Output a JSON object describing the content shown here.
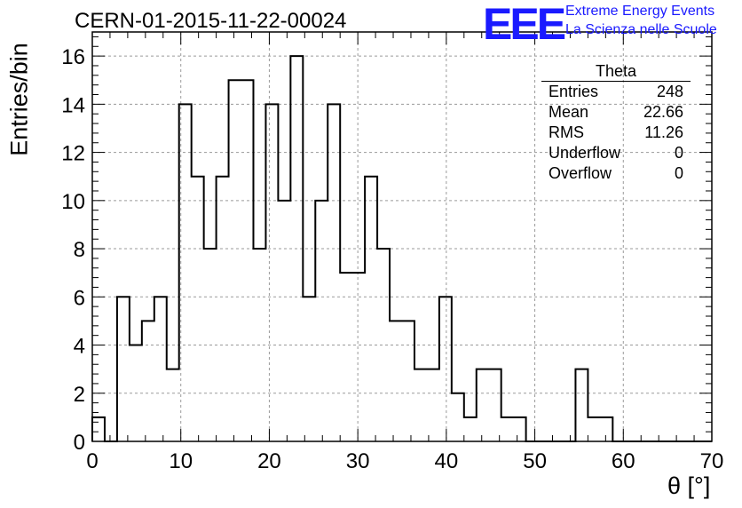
{
  "header": {
    "title": "CERN-01-2015-11-22-00024",
    "logo_text": "EEE",
    "logo_line1": "Extreme Energy Events",
    "logo_line2": "La Scienza nelle Scuole",
    "logo_color": "#1a1aff"
  },
  "stats_box": {
    "name": "Theta",
    "rows": [
      {
        "label": "Entries",
        "value": "248"
      },
      {
        "label": "Mean",
        "value": "22.66"
      },
      {
        "label": "RMS",
        "value": "11.26"
      },
      {
        "label": "Underflow",
        "value": "0"
      },
      {
        "label": "Overflow",
        "value": "0"
      }
    ]
  },
  "chart_data": {
    "type": "bar",
    "style": "step histogram",
    "xlabel": "θ [°]",
    "ylabel": "Entries/bin",
    "xlim": [
      0,
      70
    ],
    "ylim": [
      0,
      17
    ],
    "xticks": [
      0,
      10,
      20,
      30,
      40,
      50,
      60,
      70
    ],
    "yticks": [
      0,
      2,
      4,
      6,
      8,
      10,
      12,
      14,
      16
    ],
    "grid": true,
    "bin_width": 1.4,
    "bin_edges_start": 0,
    "values": [
      1,
      0,
      6,
      4,
      5,
      6,
      3,
      14,
      11,
      8,
      11,
      15,
      15,
      8,
      14,
      10,
      16,
      6,
      10,
      14,
      7,
      7,
      11,
      8,
      5,
      5,
      3,
      3,
      6,
      2,
      1,
      3,
      3,
      1,
      1,
      0,
      0,
      0,
      0,
      3,
      1,
      1,
      0,
      0,
      0,
      0,
      0,
      0,
      0,
      0
    ]
  }
}
